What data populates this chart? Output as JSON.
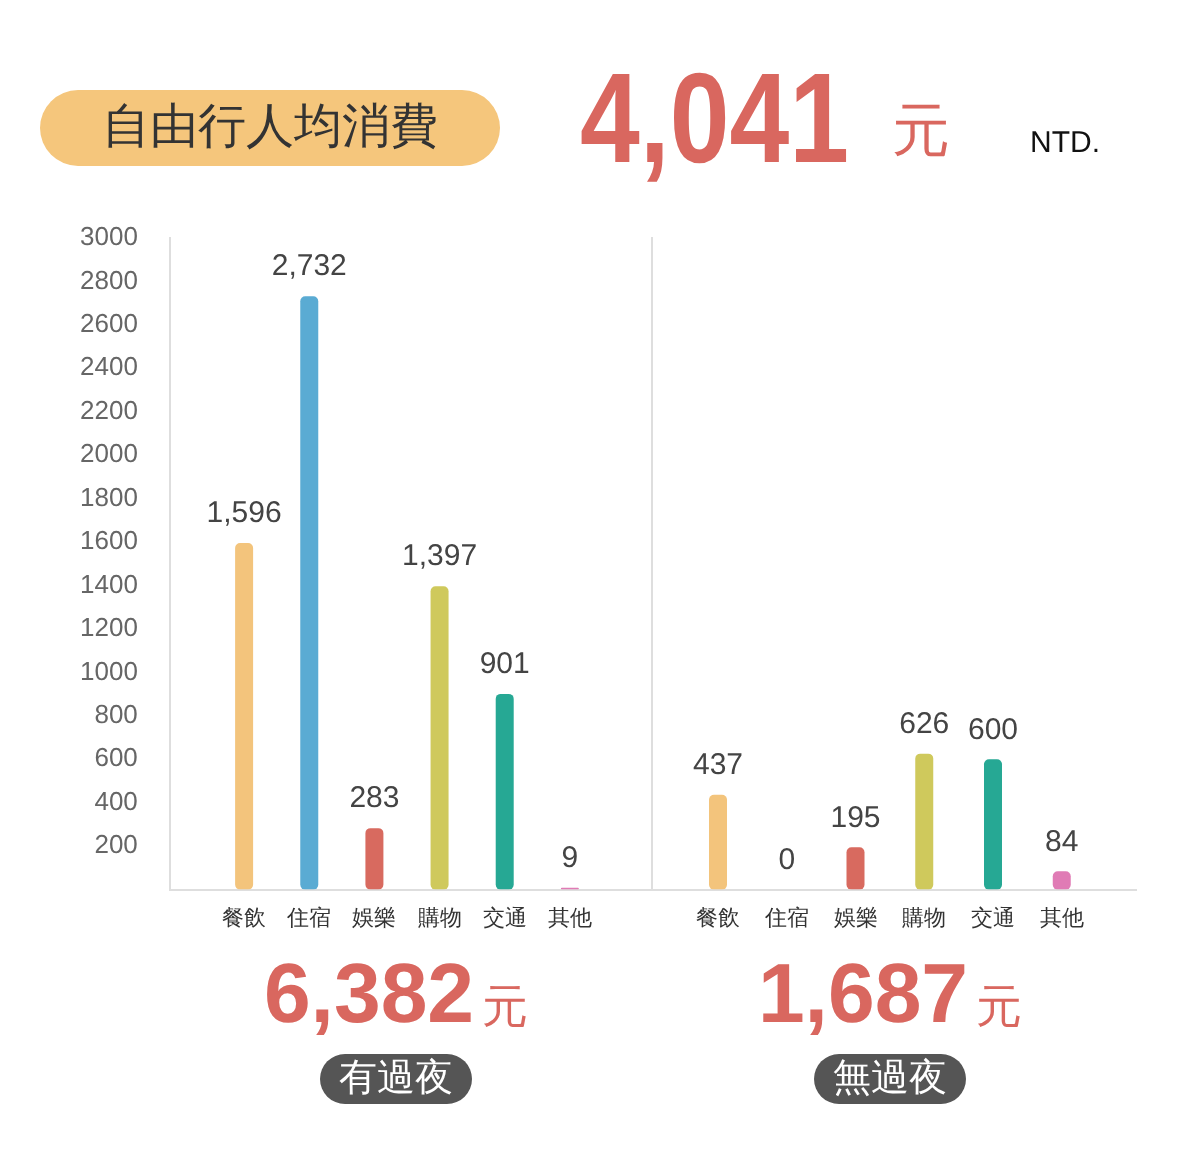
{
  "chart_data": [
    {
      "type": "other",
      "title": "自由行人均消費",
      "annotations": [
        "4,041",
        "元",
        "NTD."
      ]
    },
    {
      "type": "bar",
      "categories": [
        "餐飲",
        "住宿",
        "娛樂",
        "購物",
        "交通",
        "其他"
      ],
      "values": [
        1596,
        2732,
        283,
        1397,
        901,
        9
      ],
      "colors": [
        "#f3c47c",
        "#5aabd3",
        "#d86a5f",
        "#cfc95c",
        "#26a894",
        "#e07bb5"
      ],
      "value_labels": [
        "1,596",
        "2,732",
        "283",
        "1,397",
        "901",
        "9"
      ],
      "ylim": [
        0,
        3000
      ],
      "yticks": [
        200,
        400,
        600,
        800,
        1000,
        1200,
        1400,
        1600,
        1800,
        2000,
        2200,
        2400,
        2600,
        2800,
        3000
      ],
      "xlabel": "有過夜",
      "annotations": [
        "6,382",
        "元"
      ]
    },
    {
      "type": "bar",
      "categories": [
        "餐飲",
        "住宿",
        "娛樂",
        "購物",
        "交通",
        "其他"
      ],
      "values": [
        437,
        0,
        195,
        626,
        600,
        84
      ],
      "colors": [
        "#f3c47c",
        "#5aabd3",
        "#d86a5f",
        "#cfc95c",
        "#26a894",
        "#e07bb5"
      ],
      "value_labels": [
        "437",
        "0",
        "195",
        "626",
        "600",
        "84"
      ],
      "ylim": [
        0,
        3000
      ],
      "yticks": [
        200,
        400,
        600,
        800,
        1000,
        1200,
        1400,
        1600,
        1800,
        2000,
        2200,
        2400,
        2600,
        2800,
        3000
      ],
      "tick_labels": "x",
      "xlabel": "無過夜",
      "annotations": [
        "1,687",
        "元"
      ]
    }
  ]
}
